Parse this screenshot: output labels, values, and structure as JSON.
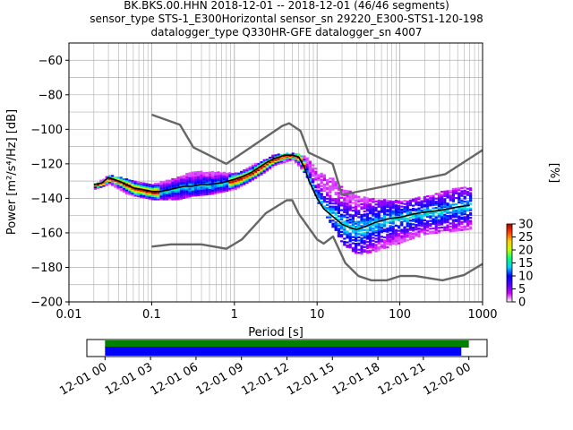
{
  "title_lines": [
    "BK.BKS.00.HHN   2018-12-01 -- 2018-12-01  (46/46 segments)",
    "sensor_type STS-1_E300Horizontal sensor_sn 29220_E300-STS1-120-198",
    "datalogger_type Q330HR-GFE datalogger_sn 4007"
  ],
  "chart_data": [
    {
      "type": "heatmap",
      "title": "BK.BKS.00.HHN   2018-12-01 -- 2018-12-01  (46/46 segments)",
      "xlabel": "Period [s]",
      "ylabel": "Power [m²/s⁴/Hz] [dB]",
      "x_scale": "log",
      "xlim": [
        0.01,
        1000
      ],
      "ylim": [
        -200,
        -50
      ],
      "x_ticks": [
        0.01,
        0.1,
        1,
        10,
        100,
        1000
      ],
      "x_tick_labels": [
        "0.01",
        "0.1",
        "1",
        "10",
        "100",
        "1000"
      ],
      "y_ticks": [
        -200,
        -180,
        -160,
        -140,
        -120,
        -100,
        -80,
        -60
      ],
      "y_tick_labels": [
        "−200",
        "−180",
        "−160",
        "−140",
        "−120",
        "−100",
        "−80",
        "−60"
      ],
      "grid": true,
      "colorbar": {
        "label": "[%]",
        "range": [
          0,
          30
        ],
        "ticks": [
          0,
          5,
          10,
          15,
          20,
          25,
          30
        ],
        "colormap": [
          "#ffffff",
          "#d000ff",
          "#5000ff",
          "#0000ff",
          "#00d0ff",
          "#00ff80",
          "#c0ff00",
          "#ffd000",
          "#ff4000",
          "#b00000"
        ]
      },
      "series": [
        {
          "name": "",
          "role": "mean",
          "color": "#000000",
          "x": [
            0.02,
            0.025,
            0.03,
            0.035,
            0.04,
            0.05,
            0.06,
            0.08,
            0.1,
            0.13,
            0.16,
            0.2,
            0.25,
            0.3,
            0.4,
            0.5,
            0.7,
            1,
            1.3,
            1.6,
            2,
            2.5,
            3,
            3.5,
            4,
            5,
            6,
            7,
            8,
            10,
            12,
            15,
            20,
            25,
            30,
            40,
            50,
            70,
            100,
            150,
            200,
            300,
            400,
            500,
            700
          ],
          "y": [
            -132,
            -131,
            -128,
            -129,
            -130,
            -132,
            -134,
            -135,
            -136,
            -136,
            -135,
            -134,
            -133,
            -133,
            -132,
            -132,
            -131,
            -129,
            -127,
            -125,
            -122,
            -119,
            -117,
            -116,
            -115,
            -115,
            -116,
            -122,
            -130,
            -140,
            -146,
            -150,
            -155,
            -157,
            -158,
            -156,
            -154,
            -152,
            -151,
            -149,
            -148,
            -147,
            -146,
            -145,
            -144
          ]
        },
        {
          "name": "",
          "role": "noise-model-high",
          "color": "#666666",
          "x": [
            0.1,
            0.22,
            0.32,
            0.8,
            3.8,
            4.6,
            6.3,
            7.9,
            15.4,
            20,
            354.8,
            1000
          ],
          "y": [
            -91.5,
            -97.4,
            -110.5,
            -120,
            -98,
            -96.5,
            -101,
            -113.5,
            -120,
            -138,
            -126,
            -112
          ]
        },
        {
          "name": "",
          "role": "noise-model-low",
          "color": "#666666",
          "x": [
            0.1,
            0.17,
            0.4,
            0.8,
            1.24,
            2.4,
            4.3,
            5,
            6,
            10,
            12,
            15.6,
            21.9,
            31.6,
            45,
            70,
            101,
            154,
            328,
            600,
            1000
          ],
          "y": [
            -168,
            -166.7,
            -166.7,
            -169.2,
            -163.7,
            -148.6,
            -141.1,
            -141.1,
            -149,
            -163.8,
            -166.2,
            -162.1,
            -177.5,
            -185,
            -187.5,
            -187.5,
            -185,
            -185,
            -187.5,
            -184.4,
            -178
          ]
        }
      ],
      "distribution_envelope": {
        "x": [
          0.02,
          0.03,
          0.05,
          0.1,
          0.2,
          0.3,
          0.5,
          1,
          2,
          3,
          5,
          7,
          10,
          15,
          20,
          30,
          50,
          100,
          200,
          500,
          700
        ],
        "y_top": [
          -131,
          -126,
          -128,
          -131,
          -127,
          -124,
          -124,
          -125,
          -118,
          -114,
          -113,
          -115,
          -124,
          -128,
          -133,
          -138,
          -140,
          -141,
          -138,
          -133,
          -133
        ],
        "y_bottom": [
          -134,
          -131,
          -137,
          -140,
          -140,
          -138,
          -137,
          -134,
          -126,
          -120,
          -117,
          -125,
          -142,
          -156,
          -166,
          -172,
          -170,
          -165,
          -160,
          -158,
          -157
        ]
      }
    },
    {
      "type": "bar",
      "title": "",
      "x_tick_labels": [
        "12-01 00",
        "12-01 03",
        "12-01 06",
        "12-01 09",
        "12-01 12",
        "12-01 15",
        "12-01 18",
        "12-01 21",
        "12-02 00"
      ],
      "x_tick_hours": [
        0,
        3,
        6,
        9,
        12,
        15,
        18,
        21,
        24
      ],
      "xlim_hours": [
        -1.2,
        25.2
      ],
      "series": [
        {
          "name": "",
          "role": "data-coverage",
          "color": "#008000",
          "start_hours": 0,
          "end_hours": 24
        },
        {
          "name": "",
          "role": "psd-coverage",
          "color": "#0000ff",
          "start_hours": 0,
          "end_hours": 23.5
        }
      ]
    }
  ],
  "colors": {
    "axis": "#000000",
    "grid": "#b0b0b0",
    "noise_model": "#666666",
    "mean": "#000000"
  }
}
